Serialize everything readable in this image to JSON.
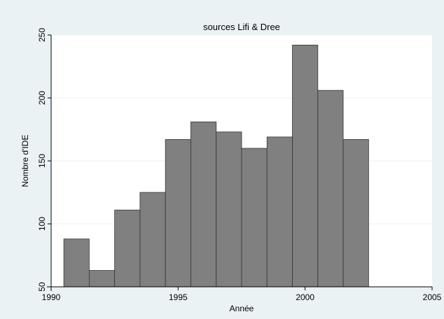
{
  "chart_data": {
    "type": "bar",
    "title": "sources Lifi & Dree",
    "xlabel": "Année",
    "ylabel": "Nombre d'IDE",
    "xlim": [
      1990,
      2005
    ],
    "ylim": [
      50,
      250
    ],
    "xticks": [
      1990,
      1995,
      2000,
      2005
    ],
    "yticks": [
      50,
      100,
      150,
      200,
      250
    ],
    "bar_width": 1,
    "grid": "horizontal",
    "legend": "none",
    "colors": {
      "background": "#eaf2f3",
      "plot_area": "#ffffff",
      "bar_fill": "#808080",
      "bar_edge": "#333333",
      "grid": "#eaf2f3"
    },
    "x": [
      1991,
      1992,
      1993,
      1994,
      1995,
      1996,
      1997,
      1998,
      1999,
      2000,
      2001,
      2002
    ],
    "values": [
      88,
      63,
      111,
      125,
      167,
      181,
      173,
      160,
      169,
      242,
      206,
      167
    ]
  }
}
